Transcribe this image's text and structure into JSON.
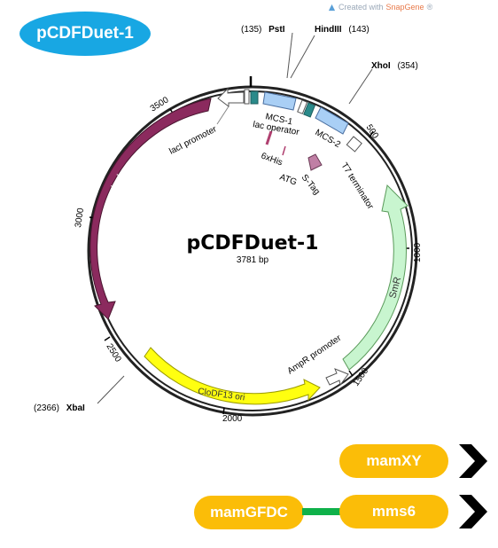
{
  "badge": {
    "label": "pCDFDuet-1"
  },
  "watermark": {
    "prefix": "Created with ",
    "brand": "SnapGene",
    "suffix": "®"
  },
  "plasmid": {
    "name": "pCDFDuet-1",
    "length": "3781 bp",
    "ticks": [
      "500",
      "1000",
      "1500",
      "2000",
      "2500",
      "3000",
      "3500"
    ],
    "sites": {
      "psti": {
        "pos": "(135)",
        "name": "PstI"
      },
      "hindiii": {
        "name": "HindIII",
        "pos": "(143)"
      },
      "xhoi": {
        "name": "XhoI",
        "pos": "(354)"
      },
      "xbai": {
        "pos": "(2366)",
        "name": "XbaI"
      }
    },
    "features": {
      "laci": "lacI",
      "laci_promoter": "lacI promoter",
      "lac_operator": "lac operator",
      "mcs1": "MCS-1",
      "mcs2": "MCS-2",
      "his": "6xHis",
      "atg": "ATG",
      "stag": "S-Tag",
      "t7term": "T7 terminator",
      "smr": "SmR",
      "ampr_promoter": "AmpR promoter",
      "clodf13": "CloDF13 ori"
    },
    "colors": {
      "laci": "#8b2a5e",
      "smr": "#c8f5cf",
      "ori": "#ffff10",
      "mcs": "#a9cff5",
      "operator": "#2a8a8a"
    }
  },
  "genes": {
    "gene1": "mamXY",
    "gene2": "mamGFDC",
    "gene3": "mms6",
    "colors": {
      "pill": "#fbbd08",
      "link": "#0fb14a",
      "arrow": "#000000"
    }
  },
  "icons": [
    "snapgene-logo-icon",
    "chevron-right-icon",
    "chevron-right-icon"
  ]
}
